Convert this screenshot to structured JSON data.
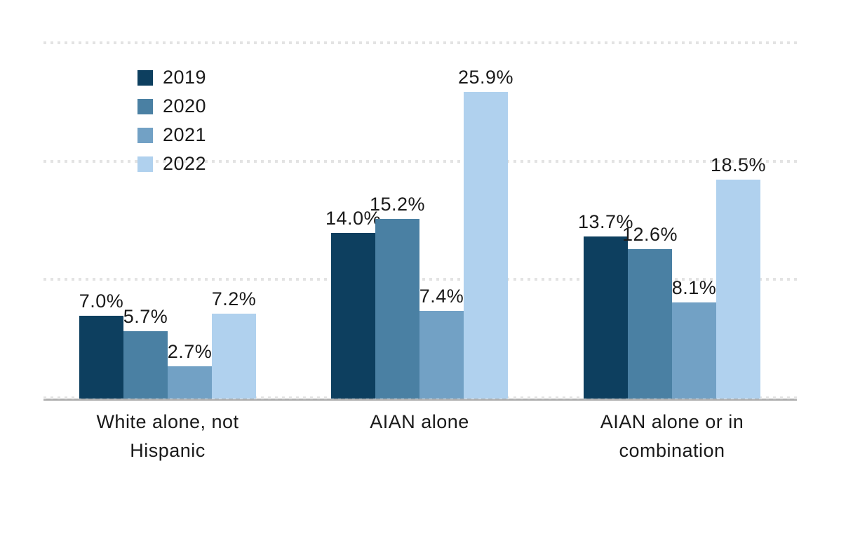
{
  "chart_data": {
    "type": "bar",
    "categories": [
      "White alone, not Hispanic",
      "AIAN alone",
      "AIAN alone or in combination"
    ],
    "series": [
      {
        "name": "2019",
        "color": "#0d3f5f",
        "values": [
          7.0,
          14.0,
          13.7
        ]
      },
      {
        "name": "2020",
        "color": "#4a80a3",
        "values": [
          5.7,
          15.2,
          12.6
        ]
      },
      {
        "name": "2021",
        "color": "#72a1c5",
        "values": [
          2.7,
          7.4,
          8.1
        ]
      },
      {
        "name": "2022",
        "color": "#b0d1ee",
        "values": [
          7.2,
          25.9,
          18.5
        ]
      }
    ],
    "value_labels": [
      [
        "7.0%",
        "5.7%",
        "2.7%",
        "7.2%"
      ],
      [
        "14.0%",
        "15.2%",
        "7.4%",
        "25.9%"
      ],
      [
        "13.7%",
        "12.6%",
        "8.1%",
        "18.5%"
      ]
    ],
    "value_label_format": "0.0%",
    "title": "",
    "xlabel": "",
    "ylabel": "",
    "ylim": [
      0,
      30
    ],
    "gridlines_pct": [
      0,
      10,
      20,
      30
    ],
    "grid_style": "dotted-horizontal",
    "gridline_color": "#e3e3e3",
    "axis_line_color": "#aeaeae",
    "text_color": "#1a1a1a",
    "background_color": "#ffffff",
    "legend_position": "top-left",
    "legend_entries": [
      "2019",
      "2020",
      "2021",
      "2022"
    ]
  }
}
